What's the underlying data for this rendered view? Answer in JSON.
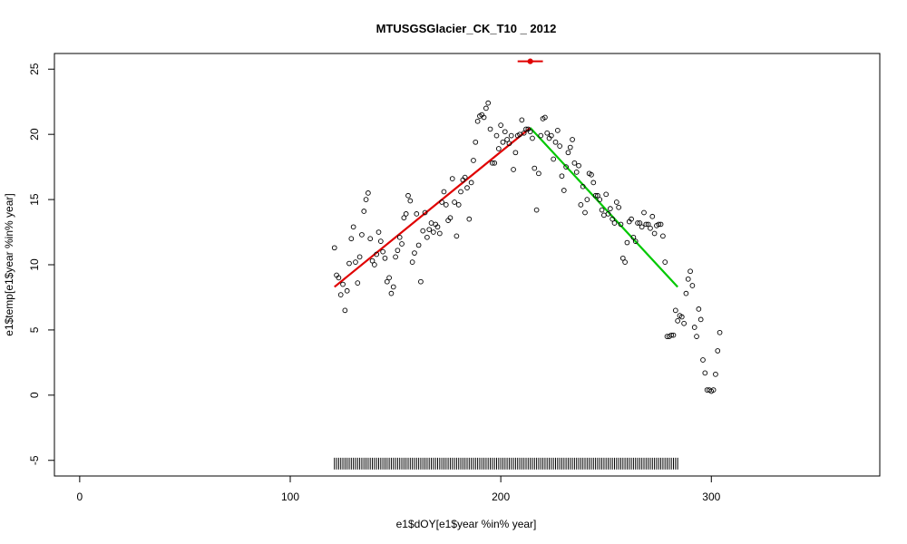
{
  "chart_data": {
    "type": "scatter",
    "title": "MTUSGSGlacier_CK_T10 _ 2012",
    "xlabel": "e1$dOY[e1$year %in% year]",
    "ylabel": "e1$temp[e1$year %in% year]",
    "xlim": [
      -12,
      380
    ],
    "ylim": [
      -6.2,
      26.2
    ],
    "x_ticks": [
      0,
      100,
      200,
      300
    ],
    "y_ticks": [
      -5,
      0,
      5,
      10,
      15,
      20,
      25
    ],
    "grid": false,
    "points": [
      [
        121,
        11.3
      ],
      [
        122,
        9.2
      ],
      [
        123,
        9.0
      ],
      [
        124,
        7.7
      ],
      [
        125,
        8.5
      ],
      [
        126,
        6.5
      ],
      [
        127,
        8.0
      ],
      [
        128,
        10.1
      ],
      [
        129,
        12.0
      ],
      [
        130,
        12.9
      ],
      [
        131,
        10.2
      ],
      [
        132,
        8.6
      ],
      [
        133,
        10.6
      ],
      [
        134,
        12.3
      ],
      [
        135,
        14.1
      ],
      [
        136,
        15.0
      ],
      [
        137,
        15.5
      ],
      [
        138,
        12.0
      ],
      [
        139,
        10.3
      ],
      [
        140,
        10.0
      ],
      [
        141,
        10.8
      ],
      [
        142,
        12.5
      ],
      [
        143,
        11.8
      ],
      [
        144,
        11.0
      ],
      [
        145,
        10.5
      ],
      [
        146,
        8.7
      ],
      [
        147,
        9.0
      ],
      [
        148,
        7.8
      ],
      [
        149,
        8.3
      ],
      [
        150,
        10.6
      ],
      [
        151,
        11.1
      ],
      [
        152,
        12.1
      ],
      [
        153,
        11.6
      ],
      [
        154,
        13.6
      ],
      [
        155,
        13.9
      ],
      [
        156,
        15.3
      ],
      [
        157,
        14.9
      ],
      [
        158,
        10.2
      ],
      [
        159,
        10.9
      ],
      [
        160,
        13.9
      ],
      [
        161,
        11.5
      ],
      [
        162,
        8.7
      ],
      [
        163,
        12.6
      ],
      [
        164,
        14.0
      ],
      [
        165,
        12.1
      ],
      [
        166,
        12.7
      ],
      [
        167,
        13.2
      ],
      [
        168,
        12.5
      ],
      [
        169,
        13.1
      ],
      [
        170,
        12.9
      ],
      [
        171,
        12.4
      ],
      [
        172,
        14.8
      ],
      [
        173,
        15.6
      ],
      [
        174,
        14.6
      ],
      [
        175,
        13.4
      ],
      [
        176,
        13.6
      ],
      [
        177,
        16.6
      ],
      [
        178,
        14.8
      ],
      [
        179,
        12.2
      ],
      [
        180,
        14.6
      ],
      [
        181,
        15.6
      ],
      [
        182,
        16.5
      ],
      [
        183,
        16.7
      ],
      [
        184,
        15.9
      ],
      [
        185,
        13.5
      ],
      [
        186,
        16.3
      ],
      [
        187,
        18.0
      ],
      [
        188,
        19.4
      ],
      [
        189,
        21.0
      ],
      [
        190,
        21.4
      ],
      [
        191,
        21.5
      ],
      [
        192,
        21.3
      ],
      [
        193,
        22.0
      ],
      [
        194,
        22.4
      ],
      [
        195,
        20.4
      ],
      [
        196,
        17.8
      ],
      [
        197,
        17.8
      ],
      [
        198,
        19.9
      ],
      [
        199,
        18.9
      ],
      [
        200,
        20.7
      ],
      [
        201,
        19.4
      ],
      [
        202,
        20.2
      ],
      [
        203,
        19.6
      ],
      [
        204,
        19.3
      ],
      [
        205,
        19.9
      ],
      [
        206,
        17.3
      ],
      [
        207,
        18.6
      ],
      [
        208,
        19.9
      ],
      [
        209,
        20.0
      ],
      [
        210,
        21.1
      ],
      [
        211,
        20.1
      ],
      [
        212,
        20.4
      ],
      [
        213,
        20.4
      ],
      [
        214,
        20.2
      ],
      [
        215,
        19.7
      ],
      [
        216,
        17.4
      ],
      [
        217,
        14.2
      ],
      [
        218,
        17.0
      ],
      [
        219,
        19.9
      ],
      [
        220,
        21.2
      ],
      [
        221,
        21.3
      ],
      [
        222,
        20.1
      ],
      [
        223,
        19.7
      ],
      [
        224,
        19.9
      ],
      [
        225,
        18.1
      ],
      [
        226,
        19.4
      ],
      [
        227,
        20.3
      ],
      [
        228,
        19.1
      ],
      [
        229,
        16.8
      ],
      [
        230,
        15.7
      ],
      [
        231,
        17.5
      ],
      [
        232,
        18.6
      ],
      [
        233,
        19.0
      ],
      [
        234,
        19.6
      ],
      [
        235,
        17.8
      ],
      [
        236,
        17.1
      ],
      [
        237,
        17.6
      ],
      [
        238,
        14.6
      ],
      [
        239,
        16.0
      ],
      [
        240,
        14.0
      ],
      [
        241,
        15.0
      ],
      [
        242,
        17.0
      ],
      [
        243,
        16.9
      ],
      [
        244,
        16.3
      ],
      [
        245,
        15.3
      ],
      [
        246,
        15.3
      ],
      [
        247,
        15.0
      ],
      [
        248,
        14.2
      ],
      [
        249,
        13.8
      ],
      [
        250,
        15.4
      ],
      [
        251,
        13.9
      ],
      [
        252,
        14.3
      ],
      [
        253,
        13.5
      ],
      [
        254,
        13.2
      ],
      [
        255,
        14.8
      ],
      [
        256,
        14.4
      ],
      [
        257,
        13.1
      ],
      [
        258,
        10.5
      ],
      [
        259,
        10.2
      ],
      [
        260,
        11.7
      ],
      [
        261,
        13.3
      ],
      [
        262,
        13.5
      ],
      [
        263,
        12.1
      ],
      [
        264,
        11.8
      ],
      [
        265,
        13.2
      ],
      [
        266,
        13.2
      ],
      [
        267,
        12.9
      ],
      [
        268,
        14.0
      ],
      [
        269,
        13.1
      ],
      [
        270,
        13.1
      ],
      [
        271,
        12.8
      ],
      [
        272,
        13.7
      ],
      [
        273,
        12.4
      ],
      [
        274,
        13.0
      ],
      [
        275,
        13.1
      ],
      [
        276,
        13.1
      ],
      [
        277,
        12.2
      ],
      [
        278,
        10.2
      ],
      [
        279,
        4.5
      ],
      [
        280,
        4.5
      ],
      [
        281,
        4.6
      ],
      [
        282,
        4.6
      ],
      [
        283,
        6.5
      ],
      [
        284,
        5.7
      ],
      [
        285,
        6.1
      ],
      [
        286,
        6.0
      ],
      [
        287,
        5.5
      ],
      [
        288,
        7.8
      ],
      [
        289,
        8.9
      ],
      [
        290,
        9.5
      ],
      [
        291,
        8.4
      ],
      [
        292,
        5.2
      ],
      [
        293,
        4.5
      ],
      [
        294,
        6.6
      ],
      [
        295,
        5.8
      ],
      [
        296,
        2.7
      ],
      [
        297,
        1.7
      ],
      [
        298,
        0.4
      ],
      [
        299,
        0.4
      ],
      [
        300,
        0.3
      ],
      [
        301,
        0.4
      ],
      [
        302,
        1.6
      ],
      [
        303,
        3.4
      ],
      [
        304,
        4.8
      ]
    ],
    "rug_x": [
      121,
      122,
      123,
      124,
      125,
      126,
      127,
      128,
      129,
      130,
      131,
      132,
      133,
      134,
      135,
      136,
      137,
      138,
      139,
      140,
      141,
      142,
      143,
      144,
      145,
      146,
      147,
      148,
      149,
      150,
      151,
      152,
      153,
      154,
      155,
      156,
      157,
      158,
      159,
      160,
      161,
      162,
      163,
      164,
      165,
      166,
      167,
      168,
      169,
      170,
      171,
      172,
      173,
      174,
      175,
      176,
      177,
      178,
      179,
      180,
      181,
      182,
      183,
      184,
      185,
      186,
      187,
      188,
      189,
      190,
      191,
      192,
      193,
      194,
      195,
      196,
      197,
      198,
      199,
      200,
      201,
      202,
      203,
      204,
      205,
      206,
      207,
      208,
      209,
      210,
      211,
      212,
      213,
      214,
      215,
      216,
      217,
      218,
      219,
      220,
      221,
      222,
      223,
      224,
      225,
      226,
      227,
      228,
      229,
      230,
      231,
      232,
      233,
      234,
      235,
      236,
      237,
      238,
      239,
      240,
      241,
      242,
      243,
      244,
      245,
      246,
      247,
      248,
      249,
      250,
      251,
      252,
      253,
      254,
      255,
      256,
      257,
      258,
      259,
      260,
      261,
      262,
      263,
      264,
      265,
      266,
      267,
      268,
      269,
      270,
      271,
      272,
      273,
      274,
      275,
      276,
      277,
      278,
      279,
      280,
      281,
      282,
      283,
      284
    ],
    "rug_y_range": [
      -5.7,
      -4.8
    ],
    "fit_lines": [
      {
        "color": "#e00000",
        "points": [
          [
            121,
            8.3
          ],
          [
            214,
            20.5
          ]
        ]
      },
      {
        "color": "#00c800",
        "points": [
          [
            214,
            20.5
          ],
          [
            284,
            8.3
          ]
        ]
      }
    ],
    "peak_marker": {
      "x": 214,
      "y": 25.6,
      "ci": [
        208,
        220
      ],
      "color": "#e00000"
    },
    "colors": {
      "points": "#000000",
      "axes": "#000000"
    }
  }
}
